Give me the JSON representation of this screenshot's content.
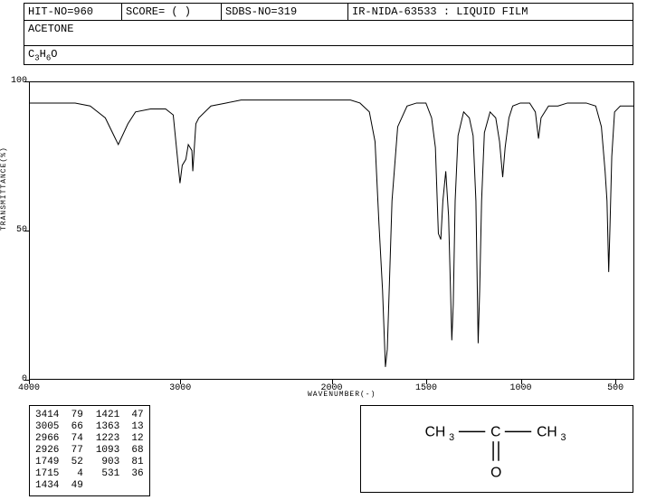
{
  "header": {
    "hit_no": "HIT-NO=960",
    "score": "SCORE=  (  )",
    "sdbs_no": "SDBS-NO=319",
    "ir_id": "IR-NIDA-63533 : LIQUID FILM",
    "compound": "ACETONE",
    "formula_prefix": "C",
    "formula_c_sub": "3",
    "formula_h": "H",
    "formula_h_sub": "6",
    "formula_o": "O"
  },
  "chart": {
    "type": "line",
    "x_label": "WAVENUMBER(-)",
    "y_label": "TRANSMITTANCE(%)",
    "xlim": [
      4000,
      400
    ],
    "ylim": [
      0,
      100
    ],
    "x_ticks": [
      4000,
      3000,
      2000,
      1500,
      1000,
      500
    ],
    "y_ticks": [
      0,
      50,
      100
    ],
    "line_color": "#000000",
    "background_color": "#ffffff",
    "border_color": "#000000",
    "data": [
      [
        4000,
        93
      ],
      [
        3900,
        93
      ],
      [
        3800,
        93
      ],
      [
        3700,
        93
      ],
      [
        3600,
        92
      ],
      [
        3500,
        88
      ],
      [
        3414,
        79
      ],
      [
        3350,
        86
      ],
      [
        3300,
        90
      ],
      [
        3200,
        91
      ],
      [
        3100,
        91
      ],
      [
        3050,
        89
      ],
      [
        3005,
        66
      ],
      [
        2990,
        72
      ],
      [
        2966,
        74
      ],
      [
        2950,
        79
      ],
      [
        2926,
        77
      ],
      [
        2920,
        70
      ],
      [
        2900,
        86
      ],
      [
        2880,
        88
      ],
      [
        2800,
        92
      ],
      [
        2700,
        93
      ],
      [
        2600,
        94
      ],
      [
        2500,
        94
      ],
      [
        2400,
        94
      ],
      [
        2300,
        94
      ],
      [
        2200,
        94
      ],
      [
        2100,
        94
      ],
      [
        2050,
        94
      ],
      [
        2000,
        94
      ],
      [
        1900,
        94
      ],
      [
        1850,
        93
      ],
      [
        1800,
        90
      ],
      [
        1770,
        80
      ],
      [
        1749,
        52
      ],
      [
        1730,
        30
      ],
      [
        1715,
        4
      ],
      [
        1705,
        10
      ],
      [
        1695,
        30
      ],
      [
        1680,
        60
      ],
      [
        1650,
        85
      ],
      [
        1600,
        92
      ],
      [
        1550,
        93
      ],
      [
        1500,
        93
      ],
      [
        1470,
        88
      ],
      [
        1450,
        78
      ],
      [
        1434,
        49
      ],
      [
        1421,
        47
      ],
      [
        1410,
        60
      ],
      [
        1395,
        70
      ],
      [
        1380,
        55
      ],
      [
        1363,
        13
      ],
      [
        1355,
        25
      ],
      [
        1345,
        60
      ],
      [
        1330,
        82
      ],
      [
        1300,
        90
      ],
      [
        1270,
        88
      ],
      [
        1250,
        82
      ],
      [
        1235,
        60
      ],
      [
        1223,
        12
      ],
      [
        1215,
        30
      ],
      [
        1205,
        60
      ],
      [
        1190,
        83
      ],
      [
        1160,
        90
      ],
      [
        1130,
        88
      ],
      [
        1110,
        80
      ],
      [
        1093,
        68
      ],
      [
        1080,
        78
      ],
      [
        1060,
        88
      ],
      [
        1040,
        92
      ],
      [
        1000,
        93
      ],
      [
        950,
        93
      ],
      [
        920,
        90
      ],
      [
        903,
        81
      ],
      [
        890,
        88
      ],
      [
        850,
        92
      ],
      [
        800,
        92
      ],
      [
        750,
        93
      ],
      [
        700,
        93
      ],
      [
        650,
        93
      ],
      [
        600,
        92
      ],
      [
        570,
        85
      ],
      [
        550,
        70
      ],
      [
        540,
        60
      ],
      [
        531,
        36
      ],
      [
        525,
        50
      ],
      [
        515,
        75
      ],
      [
        500,
        90
      ],
      [
        470,
        92
      ],
      [
        430,
        92
      ],
      [
        400,
        92
      ]
    ]
  },
  "peak_table": {
    "col1": [
      [
        3414,
        79
      ],
      [
        3005,
        66
      ],
      [
        2966,
        74
      ],
      [
        2926,
        77
      ],
      [
        1749,
        52
      ],
      [
        1715,
        4
      ],
      [
        1434,
        49
      ]
    ],
    "col2": [
      [
        1421,
        47
      ],
      [
        1363,
        13
      ],
      [
        1223,
        12
      ],
      [
        1093,
        68
      ],
      [
        903,
        81
      ],
      [
        531,
        36
      ]
    ]
  },
  "structure": {
    "left_group": "CH",
    "left_sub": "3",
    "center": "C",
    "right_group": "CH",
    "right_sub": "3",
    "bottom": "O"
  }
}
